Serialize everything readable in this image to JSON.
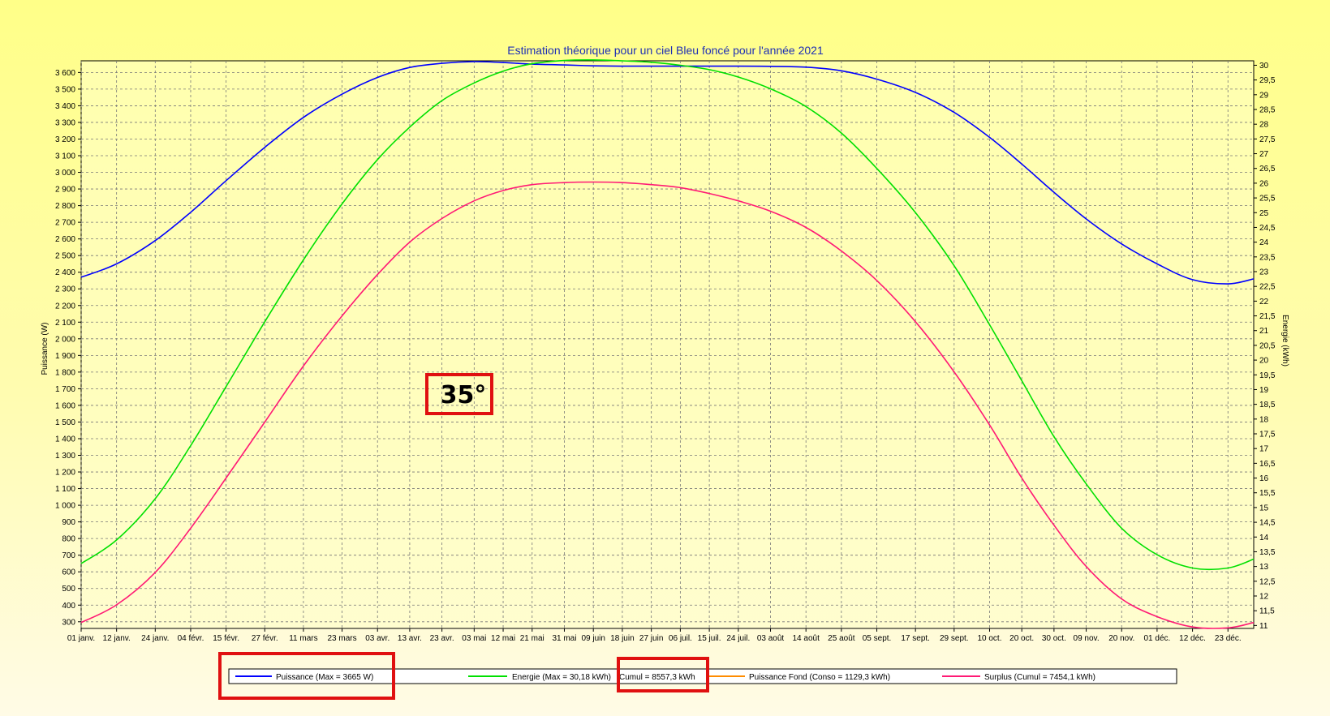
{
  "chart_data": {
    "type": "line",
    "title": "Estimation théorique pour un ciel Bleu foncé pour l'année 2021",
    "ylabel": "Puissance (W)",
    "y2label": "Energie (kWh)",
    "ylim": [
      260,
      3670
    ],
    "y2lim": [
      10.9,
      30.15
    ],
    "yticks": [
      "300",
      "400",
      "500",
      "600",
      "700",
      "800",
      "900",
      "1 000",
      "1 100",
      "1 200",
      "1 300",
      "1 400",
      "1 500",
      "1 600",
      "1 700",
      "1 800",
      "1 900",
      "2 000",
      "2 100",
      "2 200",
      "2 300",
      "2 400",
      "2 500",
      "2 600",
      "2 700",
      "2 800",
      "2 900",
      "3 000",
      "3 100",
      "3 200",
      "3 300",
      "3 400",
      "3 500",
      "3 600"
    ],
    "y2ticks": [
      "11",
      "11,5",
      "12",
      "12,5",
      "13",
      "13,5",
      "14",
      "14,5",
      "15",
      "15,5",
      "16",
      "16,5",
      "17",
      "17,5",
      "18",
      "18,5",
      "19",
      "19,5",
      "20",
      "20,5",
      "21",
      "21,5",
      "22",
      "22,5",
      "23",
      "23,5",
      "24",
      "24,5",
      "25",
      "25,5",
      "26",
      "26,5",
      "27",
      "27,5",
      "28",
      "28,5",
      "29",
      "29,5",
      "30"
    ],
    "x_day_range": [
      0,
      364
    ],
    "xticks": [
      {
        "day": 0,
        "label": "01 janv."
      },
      {
        "day": 11,
        "label": "12 janv."
      },
      {
        "day": 23,
        "label": "24 janv."
      },
      {
        "day": 34,
        "label": "04 févr."
      },
      {
        "day": 45,
        "label": "15 févr."
      },
      {
        "day": 57,
        "label": "27 févr."
      },
      {
        "day": 69,
        "label": "11 mars"
      },
      {
        "day": 81,
        "label": "23 mars"
      },
      {
        "day": 92,
        "label": "03 avr."
      },
      {
        "day": 102,
        "label": "13 avr."
      },
      {
        "day": 112,
        "label": "23 avr."
      },
      {
        "day": 122,
        "label": "03 mai"
      },
      {
        "day": 131,
        "label": "12 mai"
      },
      {
        "day": 140,
        "label": "21 mai"
      },
      {
        "day": 150,
        "label": "31 mai"
      },
      {
        "day": 159,
        "label": "09 juin"
      },
      {
        "day": 168,
        "label": "18 juin"
      },
      {
        "day": 177,
        "label": "27 juin"
      },
      {
        "day": 186,
        "label": "06 juil."
      },
      {
        "day": 195,
        "label": "15 juil."
      },
      {
        "day": 204,
        "label": "24 juil."
      },
      {
        "day": 214,
        "label": "03 août"
      },
      {
        "day": 225,
        "label": "14 août"
      },
      {
        "day": 236,
        "label": "25 août"
      },
      {
        "day": 247,
        "label": "05 sept."
      },
      {
        "day": 259,
        "label": "17 sept."
      },
      {
        "day": 271,
        "label": "29 sept."
      },
      {
        "day": 282,
        "label": "10 oct."
      },
      {
        "day": 292,
        "label": "20 oct."
      },
      {
        "day": 302,
        "label": "30 oct."
      },
      {
        "day": 312,
        "label": "09 nov."
      },
      {
        "day": 323,
        "label": "20 nov."
      },
      {
        "day": 334,
        "label": "01 déc."
      },
      {
        "day": 345,
        "label": "12 déc."
      },
      {
        "day": 356,
        "label": "23 déc."
      }
    ],
    "series": [
      {
        "name": "Puissance (Max = 3665 W)",
        "axis": "left",
        "color": "#0000ff",
        "points": [
          [
            0,
            2370
          ],
          [
            11,
            2450
          ],
          [
            23,
            2590
          ],
          [
            34,
            2760
          ],
          [
            45,
            2950
          ],
          [
            57,
            3150
          ],
          [
            69,
            3330
          ],
          [
            81,
            3470
          ],
          [
            92,
            3570
          ],
          [
            102,
            3630
          ],
          [
            112,
            3655
          ],
          [
            122,
            3665
          ],
          [
            131,
            3660
          ],
          [
            140,
            3650
          ],
          [
            150,
            3645
          ],
          [
            159,
            3640
          ],
          [
            168,
            3638
          ],
          [
            177,
            3638
          ],
          [
            186,
            3638
          ],
          [
            195,
            3638
          ],
          [
            204,
            3638
          ],
          [
            214,
            3637
          ],
          [
            225,
            3632
          ],
          [
            236,
            3610
          ],
          [
            247,
            3560
          ],
          [
            259,
            3480
          ],
          [
            271,
            3360
          ],
          [
            282,
            3210
          ],
          [
            292,
            3050
          ],
          [
            302,
            2880
          ],
          [
            312,
            2720
          ],
          [
            323,
            2570
          ],
          [
            334,
            2450
          ],
          [
            345,
            2355
          ],
          [
            356,
            2330
          ],
          [
            364,
            2360
          ]
        ]
      },
      {
        "name": "Energie (Max = 30,18 kWh)",
        "axis": "right",
        "color": "#00e000",
        "points": [
          [
            0,
            13.1
          ],
          [
            11,
            13.9
          ],
          [
            23,
            15.3
          ],
          [
            34,
            17.1
          ],
          [
            45,
            19.1
          ],
          [
            57,
            21.3
          ],
          [
            69,
            23.4
          ],
          [
            81,
            25.3
          ],
          [
            92,
            26.8
          ],
          [
            102,
            27.9
          ],
          [
            112,
            28.8
          ],
          [
            122,
            29.4
          ],
          [
            131,
            29.8
          ],
          [
            140,
            30.05
          ],
          [
            150,
            30.16
          ],
          [
            159,
            30.18
          ],
          [
            168,
            30.15
          ],
          [
            177,
            30.1
          ],
          [
            186,
            30.0
          ],
          [
            195,
            29.85
          ],
          [
            204,
            29.6
          ],
          [
            214,
            29.2
          ],
          [
            225,
            28.6
          ],
          [
            236,
            27.7
          ],
          [
            247,
            26.5
          ],
          [
            259,
            25.0
          ],
          [
            271,
            23.2
          ],
          [
            282,
            21.2
          ],
          [
            292,
            19.3
          ],
          [
            302,
            17.4
          ],
          [
            312,
            15.8
          ],
          [
            323,
            14.3
          ],
          [
            334,
            13.4
          ],
          [
            345,
            12.95
          ],
          [
            356,
            12.95
          ],
          [
            364,
            13.25
          ]
        ]
      },
      {
        "name": "Puissance Fond (Conso = 1129,3 kWh)",
        "axis": "left",
        "color": "#ff8c00",
        "points": []
      },
      {
        "name": "Surplus (Cumul = 7454,1 kWh)",
        "axis": "right",
        "color": "#ff1a75",
        "points": [
          [
            0,
            11.1
          ],
          [
            11,
            11.7
          ],
          [
            23,
            12.8
          ],
          [
            34,
            14.3
          ],
          [
            45,
            16.0
          ],
          [
            57,
            17.9
          ],
          [
            69,
            19.8
          ],
          [
            81,
            21.5
          ],
          [
            92,
            22.9
          ],
          [
            102,
            24.0
          ],
          [
            112,
            24.8
          ],
          [
            122,
            25.4
          ],
          [
            131,
            25.75
          ],
          [
            140,
            25.95
          ],
          [
            150,
            26.02
          ],
          [
            159,
            26.04
          ],
          [
            168,
            26.02
          ],
          [
            177,
            25.95
          ],
          [
            186,
            25.85
          ],
          [
            195,
            25.65
          ],
          [
            204,
            25.4
          ],
          [
            214,
            25.05
          ],
          [
            225,
            24.5
          ],
          [
            236,
            23.7
          ],
          [
            247,
            22.7
          ],
          [
            259,
            21.3
          ],
          [
            271,
            19.6
          ],
          [
            282,
            17.8
          ],
          [
            292,
            16.0
          ],
          [
            302,
            14.4
          ],
          [
            312,
            13.0
          ],
          [
            323,
            11.9
          ],
          [
            334,
            11.3
          ],
          [
            345,
            10.95
          ],
          [
            356,
            10.92
          ],
          [
            364,
            11.1
          ]
        ]
      }
    ],
    "legend_placement": "bottom",
    "grid": true,
    "annotation": "35°",
    "legend_extra": "Cumul = 8557,3 kWh"
  }
}
